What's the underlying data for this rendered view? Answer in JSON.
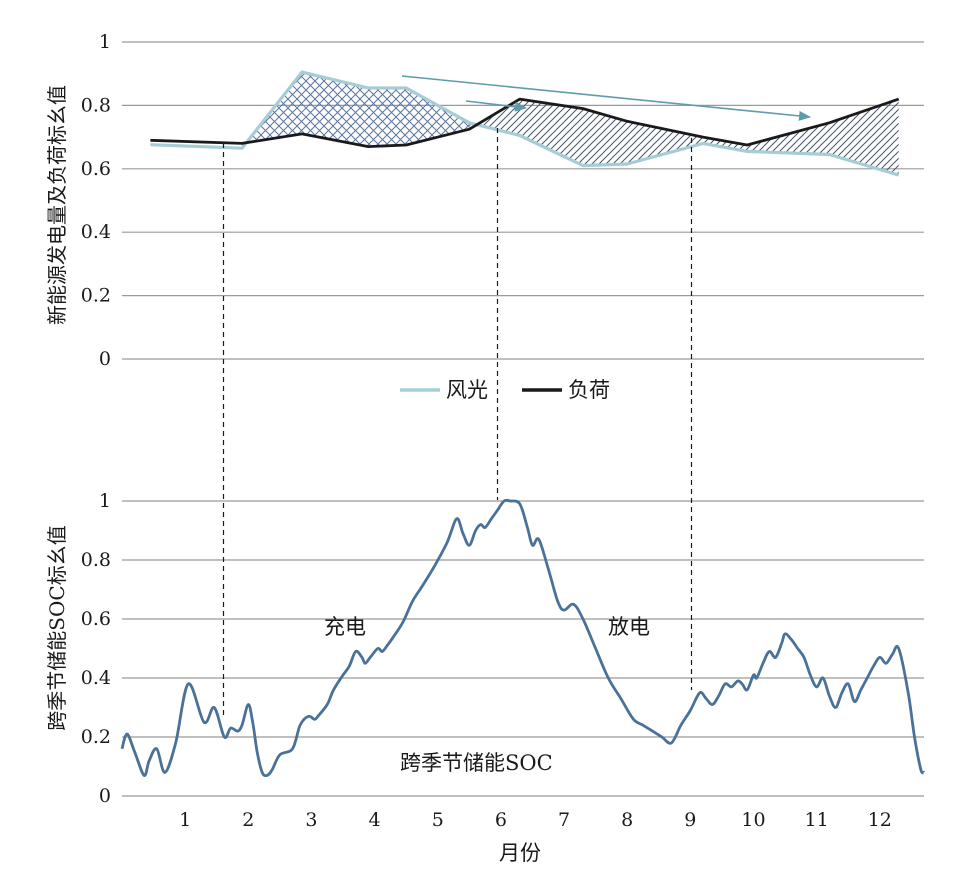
{
  "chart_data": [
    {
      "type": "line",
      "ylabel": "新能源发电量及负荷标幺值",
      "ylim": [
        0,
        1
      ],
      "yticks": [
        "0",
        "0.2",
        "0.4",
        "0.6",
        "0.8",
        "1"
      ],
      "grid": true,
      "legend": {
        "placement": "bottom-center",
        "entries": [
          "风光",
          "负荷"
        ]
      },
      "series": [
        {
          "name": "风光",
          "color": "#a6cdd5",
          "x": [
            0.45,
            1.9,
            2.85,
            3.9,
            4.5,
            5.5,
            6.3,
            7.3,
            8.0,
            9.2,
            9.9,
            11.2,
            12.3
          ],
          "values": [
            0.676,
            0.665,
            0.905,
            0.855,
            0.855,
            0.745,
            0.705,
            0.61,
            0.615,
            0.68,
            0.655,
            0.645,
            0.58
          ]
        },
        {
          "name": "负荷",
          "color": "#1a1a1a",
          "x": [
            0.45,
            1.9,
            2.85,
            3.9,
            4.5,
            5.5,
            6.3,
            7.3,
            8.0,
            9.2,
            9.9,
            11.2,
            12.3
          ],
          "values": [
            0.69,
            0.68,
            0.71,
            0.67,
            0.675,
            0.725,
            0.82,
            0.79,
            0.75,
            0.7,
            0.675,
            0.745,
            0.82
          ]
        }
      ]
    },
    {
      "type": "line",
      "ylabel": "跨季节储能SOC标幺值",
      "xlabel": "月份",
      "ylim": [
        0,
        1
      ],
      "yticks": [
        "0",
        "0.2",
        "0.4",
        "0.6",
        "0.8",
        "1"
      ],
      "xticks": [
        "1",
        "2",
        "3",
        "4",
        "5",
        "6",
        "7",
        "8",
        "9",
        "10",
        "11",
        "12"
      ],
      "grid": true,
      "annotations": [
        "充电",
        "放电"
      ],
      "series": [
        {
          "name": "跨季节储能SOC",
          "color": "#4a7197",
          "x": [
            0.0,
            0.08,
            0.2,
            0.35,
            0.43,
            0.55,
            0.68,
            0.85,
            1.05,
            1.3,
            1.46,
            1.62,
            1.72,
            1.83,
            1.9,
            2.0,
            2.07,
            2.14,
            2.22,
            2.3,
            2.38,
            2.5,
            2.7,
            2.82,
            2.95,
            3.05,
            3.1,
            3.25,
            3.35,
            3.5,
            3.6,
            3.7,
            3.8,
            3.85,
            3.93,
            4.05,
            4.12,
            4.2,
            4.3,
            4.45,
            4.6,
            4.75,
            4.95,
            5.15,
            5.3,
            5.4,
            5.5,
            5.6,
            5.68,
            5.75,
            5.85,
            5.95,
            6.05,
            6.15,
            6.3,
            6.42,
            6.5,
            6.6,
            6.75,
            6.9,
            7.0,
            7.15,
            7.3,
            7.5,
            7.7,
            7.9,
            8.1,
            8.25,
            8.4,
            8.55,
            8.7,
            8.85,
            9.0,
            9.15,
            9.25,
            9.35,
            9.45,
            9.55,
            9.65,
            9.75,
            9.82,
            9.9,
            10.0,
            10.05,
            10.15,
            10.25,
            10.35,
            10.45,
            10.5,
            10.6,
            10.7,
            10.8,
            10.9,
            11.0,
            11.1,
            11.2,
            11.3,
            11.4,
            11.5,
            11.6,
            11.7,
            11.8,
            11.9,
            12.0,
            12.1,
            12.2,
            12.3,
            12.45,
            12.55,
            12.65,
            12.7
          ],
          "values": [
            0.16,
            0.21,
            0.15,
            0.07,
            0.12,
            0.16,
            0.08,
            0.18,
            0.38,
            0.25,
            0.3,
            0.2,
            0.23,
            0.22,
            0.24,
            0.31,
            0.25,
            0.15,
            0.08,
            0.07,
            0.09,
            0.14,
            0.16,
            0.24,
            0.27,
            0.26,
            0.27,
            0.31,
            0.36,
            0.41,
            0.44,
            0.49,
            0.47,
            0.45,
            0.47,
            0.5,
            0.49,
            0.51,
            0.54,
            0.59,
            0.66,
            0.71,
            0.78,
            0.86,
            0.94,
            0.89,
            0.85,
            0.9,
            0.92,
            0.91,
            0.94,
            0.97,
            1.0,
            1.0,
            0.99,
            0.91,
            0.85,
            0.87,
            0.77,
            0.66,
            0.63,
            0.65,
            0.6,
            0.5,
            0.4,
            0.33,
            0.26,
            0.24,
            0.22,
            0.2,
            0.18,
            0.24,
            0.29,
            0.35,
            0.33,
            0.31,
            0.34,
            0.38,
            0.37,
            0.39,
            0.38,
            0.36,
            0.41,
            0.4,
            0.45,
            0.49,
            0.47,
            0.52,
            0.55,
            0.53,
            0.5,
            0.47,
            0.41,
            0.37,
            0.4,
            0.34,
            0.3,
            0.35,
            0.38,
            0.32,
            0.36,
            0.4,
            0.44,
            0.47,
            0.45,
            0.48,
            0.5,
            0.35,
            0.2,
            0.09,
            0.08
          ]
        }
      ]
    }
  ]
}
